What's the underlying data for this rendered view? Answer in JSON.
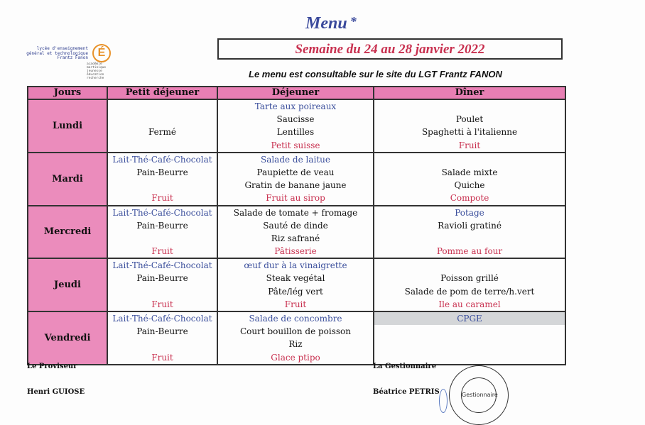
{
  "header": {
    "title": "Menu",
    "title_mark": "*",
    "week": "Semaine du 24 au 28 janvier 2022",
    "subtitle": "Le menu est consultable sur le site du LGT Frantz FANON",
    "logo_text": "lycée d'enseignement\ngénéral et technologique\nFrantz Fanon",
    "logo_letter": "É",
    "logo_subtext": "académie\nmartinique\njeunesse\néducation\nrecherche"
  },
  "colors": {
    "blue": "#3b4f9c",
    "red": "#c8304f",
    "pink": "#eb8cbc"
  },
  "table": {
    "headers": [
      "Jours",
      "Petit déjeuner",
      "Déjeuner",
      "Dîner"
    ],
    "rows": [
      {
        "day": "Lundi",
        "breakfast": [
          [
            "",
            ""
          ],
          [
            "",
            ""
          ],
          [
            "Fermé",
            "black"
          ],
          [
            "",
            ""
          ]
        ],
        "lunch": [
          [
            "Tarte aux poireaux",
            "blue"
          ],
          [
            "Saucisse",
            "black"
          ],
          [
            "Lentilles",
            "black"
          ],
          [
            "Petit suisse",
            "red"
          ]
        ],
        "dinner": [
          [
            "",
            ""
          ],
          [
            "Poulet",
            "black"
          ],
          [
            "Spaghetti à l'italienne",
            "black"
          ],
          [
            "Fruit",
            "red"
          ]
        ]
      },
      {
        "day": "Mardi",
        "breakfast": [
          [
            "Lait-Thé-Café-Chocolat",
            "blue"
          ],
          [
            "Pain-Beurre",
            "black"
          ],
          [
            "",
            ""
          ],
          [
            "Fruit",
            "red"
          ]
        ],
        "lunch": [
          [
            "Salade de laitue",
            "blue"
          ],
          [
            "Paupiette de veau",
            "black"
          ],
          [
            "Gratin de banane jaune",
            "black"
          ],
          [
            "Fruit au sirop",
            "red"
          ]
        ],
        "dinner": [
          [
            "",
            ""
          ],
          [
            "Salade mixte",
            "black"
          ],
          [
            "Quiche",
            "black"
          ],
          [
            "Compote",
            "red"
          ]
        ]
      },
      {
        "day": "Mercredi",
        "breakfast": [
          [
            "Lait-Thé-Café-Chocolat",
            "blue"
          ],
          [
            "Pain-Beurre",
            "black"
          ],
          [
            "",
            ""
          ],
          [
            "Fruit",
            "red"
          ]
        ],
        "lunch": [
          [
            "Salade de tomate + fromage",
            "black"
          ],
          [
            "Sauté de dinde",
            "black"
          ],
          [
            "Riz safrané",
            "black"
          ],
          [
            "Pâtisserie",
            "red"
          ]
        ],
        "dinner": [
          [
            "Potage",
            "blue"
          ],
          [
            "Ravioli gratiné",
            "black"
          ],
          [
            "",
            ""
          ],
          [
            "Pomme au four",
            "red"
          ]
        ]
      },
      {
        "day": "Jeudi",
        "breakfast": [
          [
            "Lait-Thé-Café-Chocolat",
            "blue"
          ],
          [
            "Pain-Beurre",
            "black"
          ],
          [
            "",
            ""
          ],
          [
            "Fruit",
            "red"
          ]
        ],
        "lunch": [
          [
            "œuf dur à la vinaigrette",
            "blue"
          ],
          [
            "Steak vegétal",
            "black"
          ],
          [
            "Pâte/lég vert",
            "black"
          ],
          [
            "Fruit",
            "red"
          ]
        ],
        "dinner": [
          [
            "",
            ""
          ],
          [
            "Poisson grillé",
            "black"
          ],
          [
            "Salade de pom de terre/h.vert",
            "black"
          ],
          [
            "Ile au caramel",
            "red"
          ]
        ]
      },
      {
        "day": "Vendredi",
        "breakfast": [
          [
            "Lait-Thé-Café-Chocolat",
            "blue"
          ],
          [
            "Pain-Beurre",
            "black"
          ],
          [
            "",
            ""
          ],
          [
            "Fruit",
            "red"
          ]
        ],
        "lunch": [
          [
            "Salade de concombre",
            "blue"
          ],
          [
            "Court bouillon de poisson",
            "black"
          ],
          [
            "Riz",
            "black"
          ],
          [
            "Glace ptipo",
            "red"
          ]
        ],
        "dinner": [
          [
            "CPGE",
            "blue grey"
          ],
          [
            "",
            ""
          ],
          [
            "",
            ""
          ],
          [
            "",
            ""
          ]
        ]
      }
    ]
  },
  "signatures": {
    "left_role": "Le Proviseur",
    "left_name": "Henri GUIOSE",
    "right_role": "La Gestionnaire",
    "right_name": "Béatrice PETRIS",
    "stamp_text": "Gestionnaire"
  }
}
